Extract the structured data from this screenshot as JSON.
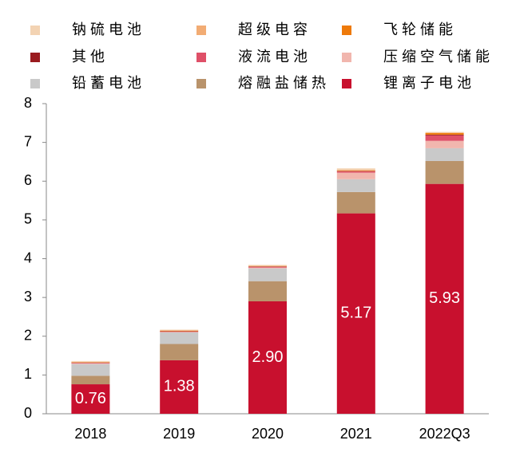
{
  "chart_data": {
    "type": "stacked_bar",
    "categories": [
      "2018",
      "2019",
      "2020",
      "2021",
      "2022Q3"
    ],
    "series": [
      {
        "name": "钠硫电池",
        "color": "#f3d3b3",
        "values": [
          0.02,
          0.02,
          0.02,
          0.04,
          0.02
        ]
      },
      {
        "name": "超级电容",
        "color": "#f2ac74",
        "values": [
          0.01,
          0.01,
          0.01,
          0.02,
          0.01
        ]
      },
      {
        "name": "飞轮储能",
        "color": "#ee7a0a",
        "values": [
          0.01,
          0.01,
          0.01,
          0.01,
          0.04
        ]
      },
      {
        "name": "其他",
        "color": "#9a1b1f",
        "values": [
          0.01,
          0.01,
          0.01,
          0.01,
          0.02
        ]
      },
      {
        "name": "液流电池",
        "color": "#df5068",
        "values": [
          0.01,
          0.01,
          0.02,
          0.03,
          0.14
        ]
      },
      {
        "name": "压缩空气储能",
        "color": "#f1b6ae",
        "values": [
          0.02,
          0.01,
          0.02,
          0.17,
          0.19
        ]
      },
      {
        "name": "铅蓄电池",
        "color": "#c9c9c9",
        "values": [
          0.3,
          0.3,
          0.33,
          0.33,
          0.33
        ]
      },
      {
        "name": "熔融盐储热",
        "color": "#b9936b",
        "values": [
          0.22,
          0.42,
          0.52,
          0.55,
          0.59
        ]
      },
      {
        "name": "锂离子电池",
        "color": "#c8102e",
        "values": [
          0.76,
          1.38,
          2.9,
          5.17,
          5.93
        ],
        "value_labels": [
          "0.76",
          "1.38",
          "2.90",
          "5.17",
          "5.93"
        ]
      }
    ],
    "ylim": [
      0,
      8
    ],
    "yticks": [
      0,
      1,
      2,
      3,
      4,
      5,
      6,
      7,
      8
    ]
  }
}
